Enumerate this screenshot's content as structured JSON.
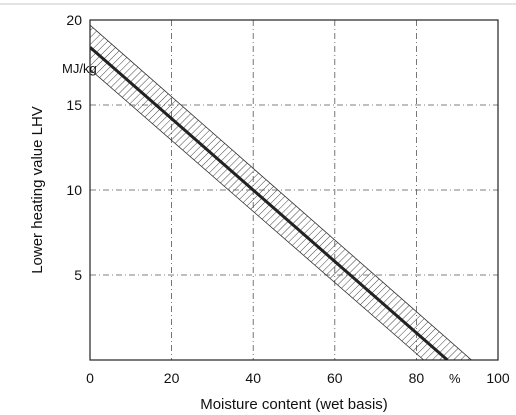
{
  "chart_data": {
    "type": "line",
    "title": "",
    "xlabel": "Moisture content (wet basis)",
    "ylabel": "Lower heating value LHV",
    "x_unit": "%",
    "y_unit": "MJ/kg",
    "xlim": [
      0,
      100
    ],
    "ylim": [
      0,
      20
    ],
    "xticks": [
      "0",
      "20",
      "40",
      "60",
      "80",
      "100"
    ],
    "yticks": [
      "5",
      "10",
      "15",
      "20"
    ],
    "grid": "dash-dot at each tick",
    "series": [
      {
        "role": "mean",
        "x": [
          0,
          87.6
        ],
        "y": [
          18.4,
          0
        ]
      },
      {
        "role": "band-upper",
        "x": [
          0,
          93.5
        ],
        "y": [
          19.7,
          0
        ]
      },
      {
        "role": "band-lower",
        "x": [
          0,
          81.8
        ],
        "y": [
          17.1,
          0
        ]
      }
    ],
    "band_style": "diagonal hatching"
  }
}
